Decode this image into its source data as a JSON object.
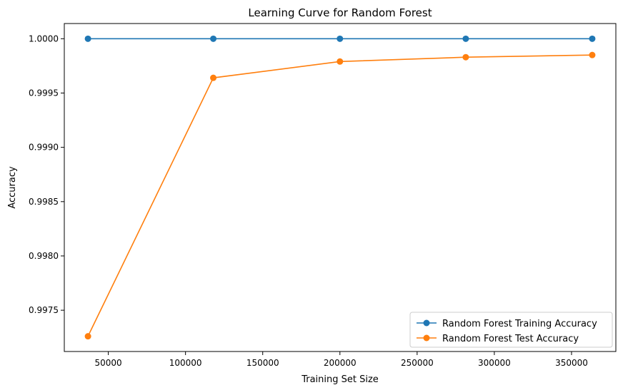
{
  "chart_data": {
    "type": "line",
    "title": "Learning Curve for Random Forest",
    "xlabel": "Training Set Size",
    "ylabel": "Accuracy",
    "x": [
      36820,
      118000,
      200000,
      281500,
      363400
    ],
    "series": [
      {
        "name": "Random Forest Training Accuracy",
        "color": "#1f77b4",
        "values": [
          1.0,
          1.0,
          1.0,
          1.0,
          1.0
        ]
      },
      {
        "name": "Random Forest Test Accuracy",
        "color": "#ff7f0e",
        "values": [
          0.99726,
          0.99964,
          0.99979,
          0.99983,
          0.99985
        ]
      }
    ],
    "xlim": [
      21500,
      378700
    ],
    "ylim": [
      0.99712,
      1.00014
    ],
    "xticks": [
      50000,
      100000,
      150000,
      200000,
      250000,
      300000,
      350000
    ],
    "xtick_labels": [
      "50000",
      "100000",
      "150000",
      "200000",
      "250000",
      "300000",
      "350000"
    ],
    "yticks": [
      0.9975,
      0.998,
      0.9985,
      0.999,
      0.9995,
      1.0
    ],
    "ytick_labels": [
      "0.9975",
      "0.9980",
      "0.9985",
      "0.9990",
      "0.9995",
      "1.0000"
    ],
    "grid": false,
    "legend": "lower-right"
  }
}
